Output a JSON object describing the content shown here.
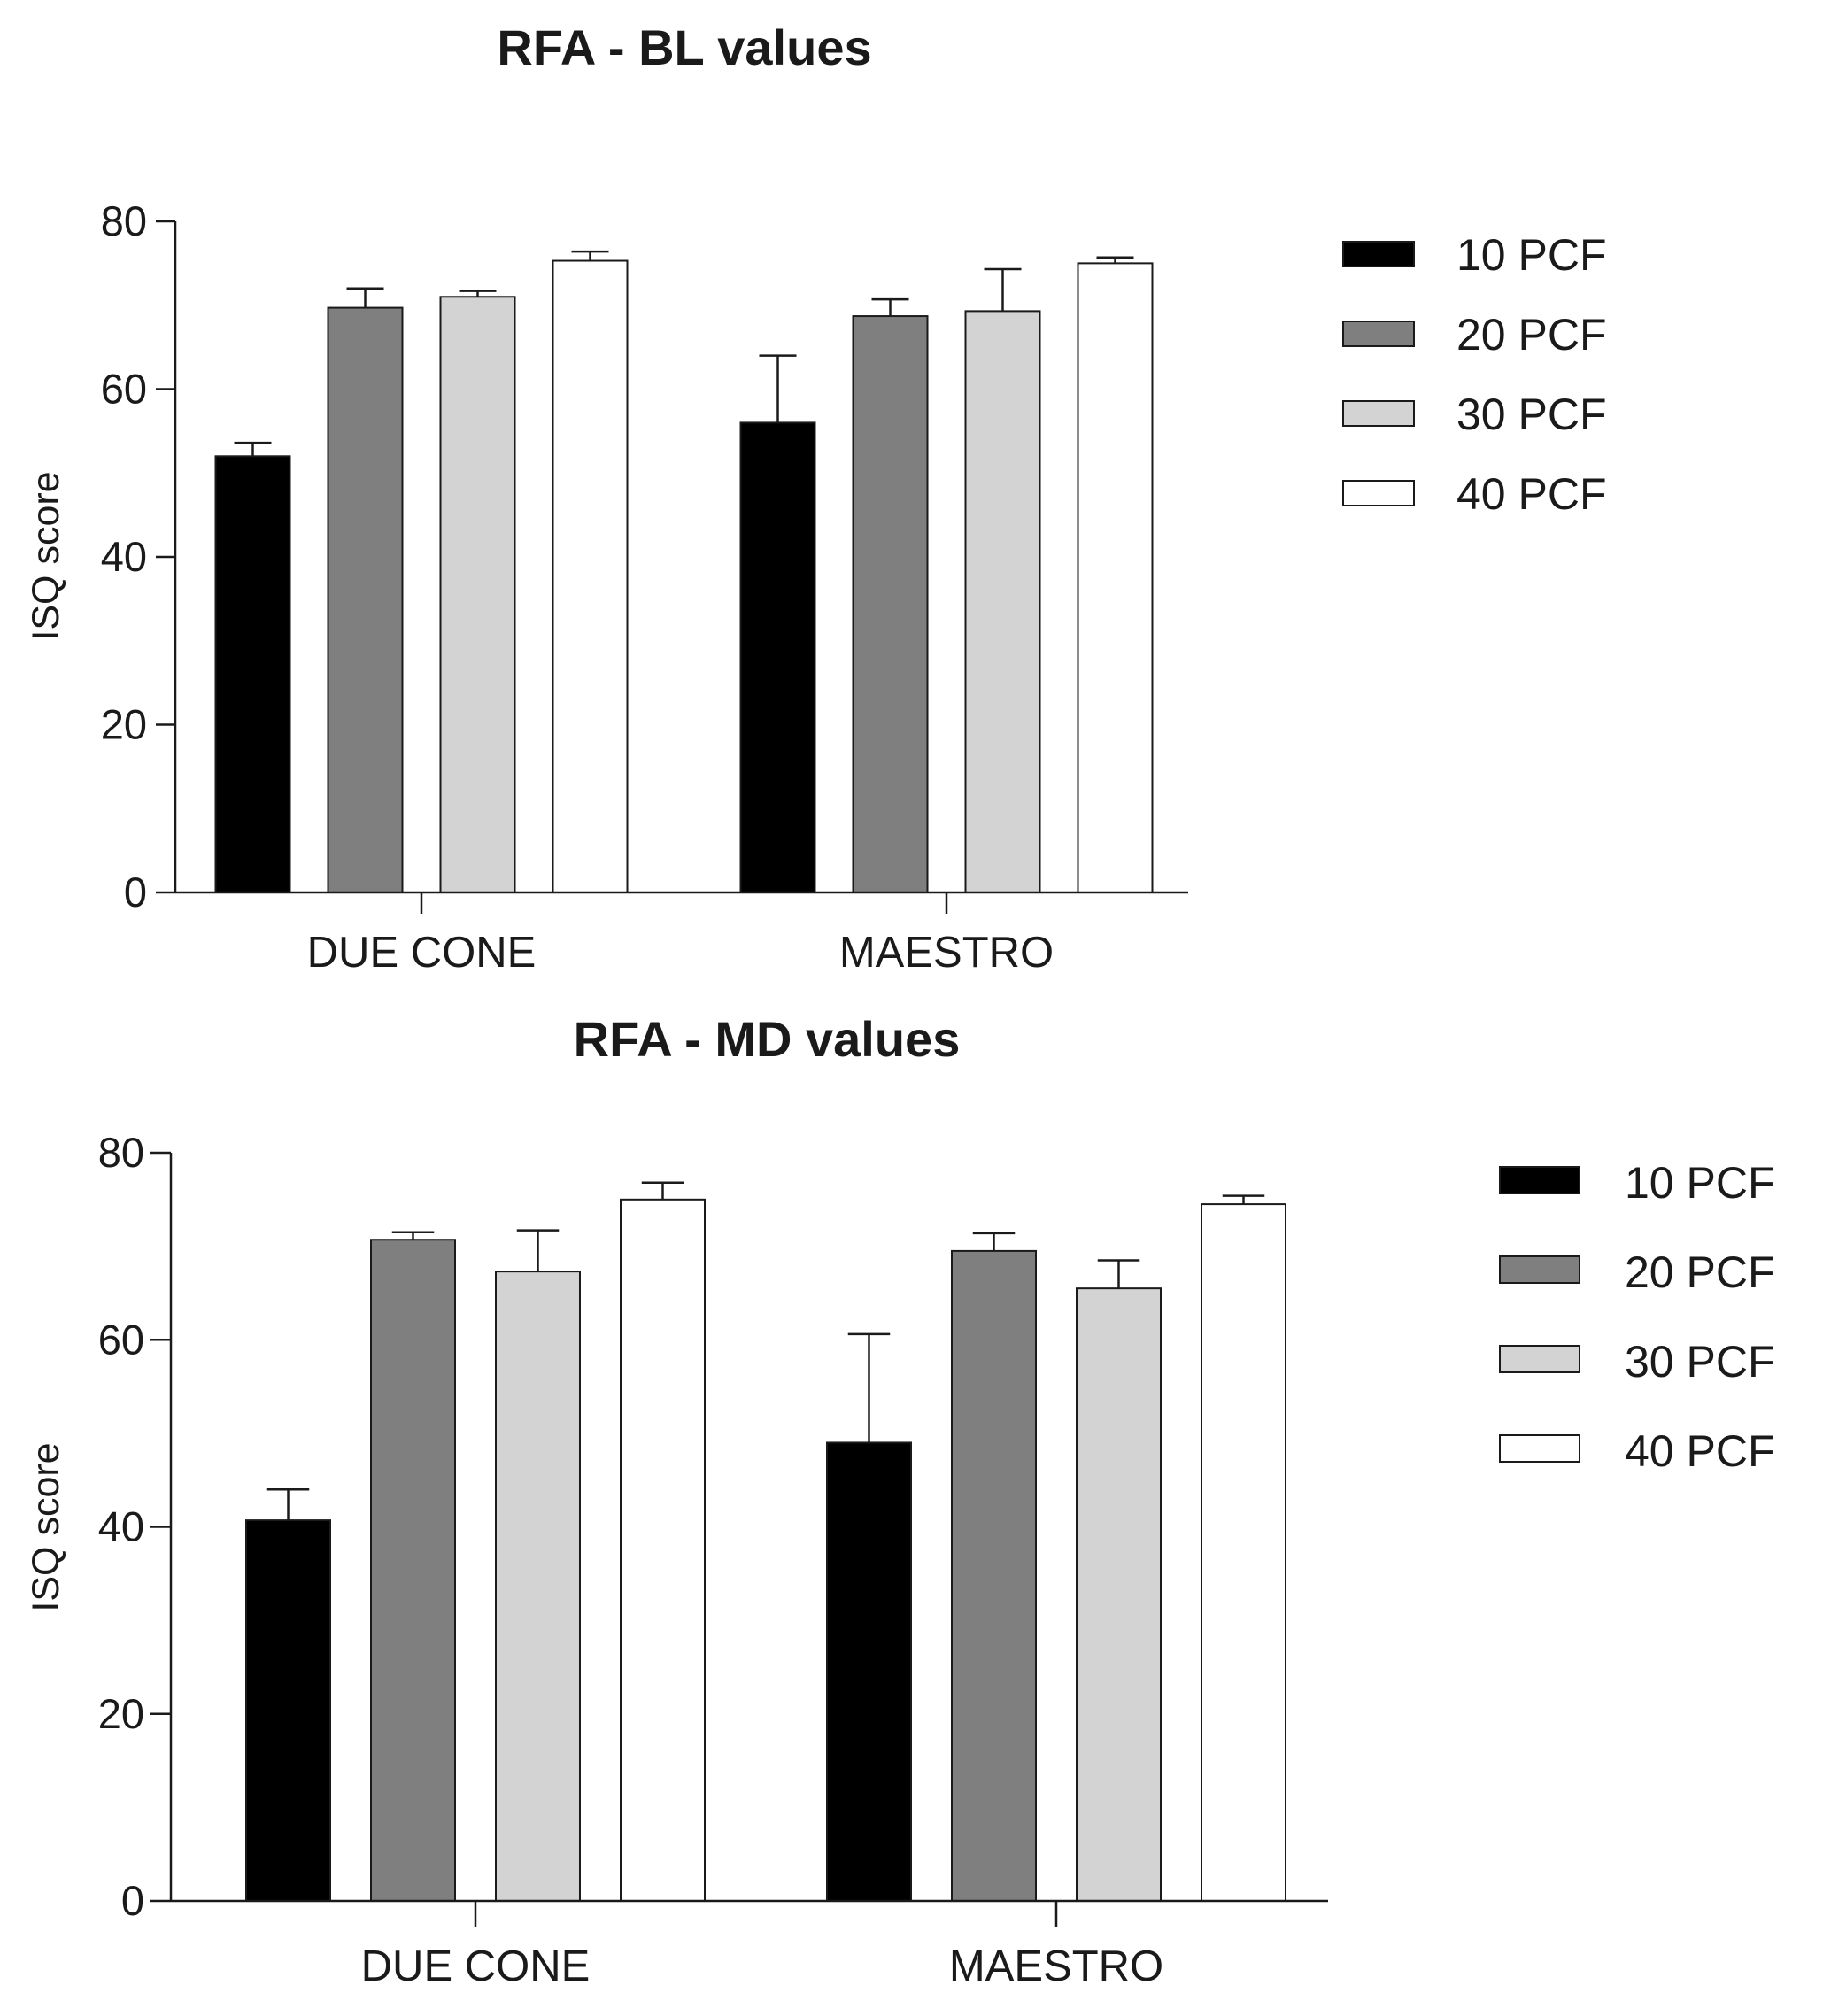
{
  "chart_data": [
    {
      "type": "bar",
      "title": "RFA - BL values",
      "xlabel": "",
      "ylabel": "ISQ score",
      "ylim": [
        0,
        80
      ],
      "yticks": [
        0,
        20,
        40,
        60,
        80
      ],
      "categories": [
        "DUE CONE",
        "MAESTRO"
      ],
      "legend_position": "right",
      "series": [
        {
          "name": "10 PCF",
          "color": "#000000",
          "values": [
            52,
            56
          ],
          "errors": [
            1.6,
            8
          ]
        },
        {
          "name": "20 PCF",
          "color": "#7f7f7f",
          "values": [
            69.7,
            68.7
          ],
          "errors": [
            2.3,
            2
          ]
        },
        {
          "name": "30 PCF",
          "color": "#d3d3d3",
          "values": [
            71,
            69.3
          ],
          "errors": [
            0.7,
            5
          ]
        },
        {
          "name": "40 PCF",
          "color": "#ffffff",
          "values": [
            75.3,
            75
          ],
          "errors": [
            1.1,
            0.7
          ]
        }
      ]
    },
    {
      "type": "bar",
      "title": "RFA - MD values",
      "xlabel": "",
      "ylabel": "ISQ score",
      "ylim": [
        0,
        80
      ],
      "yticks": [
        0,
        20,
        40,
        60,
        80
      ],
      "categories": [
        "DUE CONE",
        "MAESTRO"
      ],
      "legend_position": "right",
      "series": [
        {
          "name": "10 PCF",
          "color": "#000000",
          "values": [
            40.7,
            49
          ],
          "errors": [
            3.3,
            11.6
          ]
        },
        {
          "name": "20 PCF",
          "color": "#7f7f7f",
          "values": [
            70.7,
            69.5
          ],
          "errors": [
            0.8,
            1.9
          ]
        },
        {
          "name": "30 PCF",
          "color": "#d3d3d3",
          "values": [
            67.3,
            65.5
          ],
          "errors": [
            4.4,
            3
          ]
        },
        {
          "name": "40 PCF",
          "color": "#ffffff",
          "values": [
            75,
            74.5
          ],
          "errors": [
            1.8,
            0.9
          ]
        }
      ]
    }
  ]
}
